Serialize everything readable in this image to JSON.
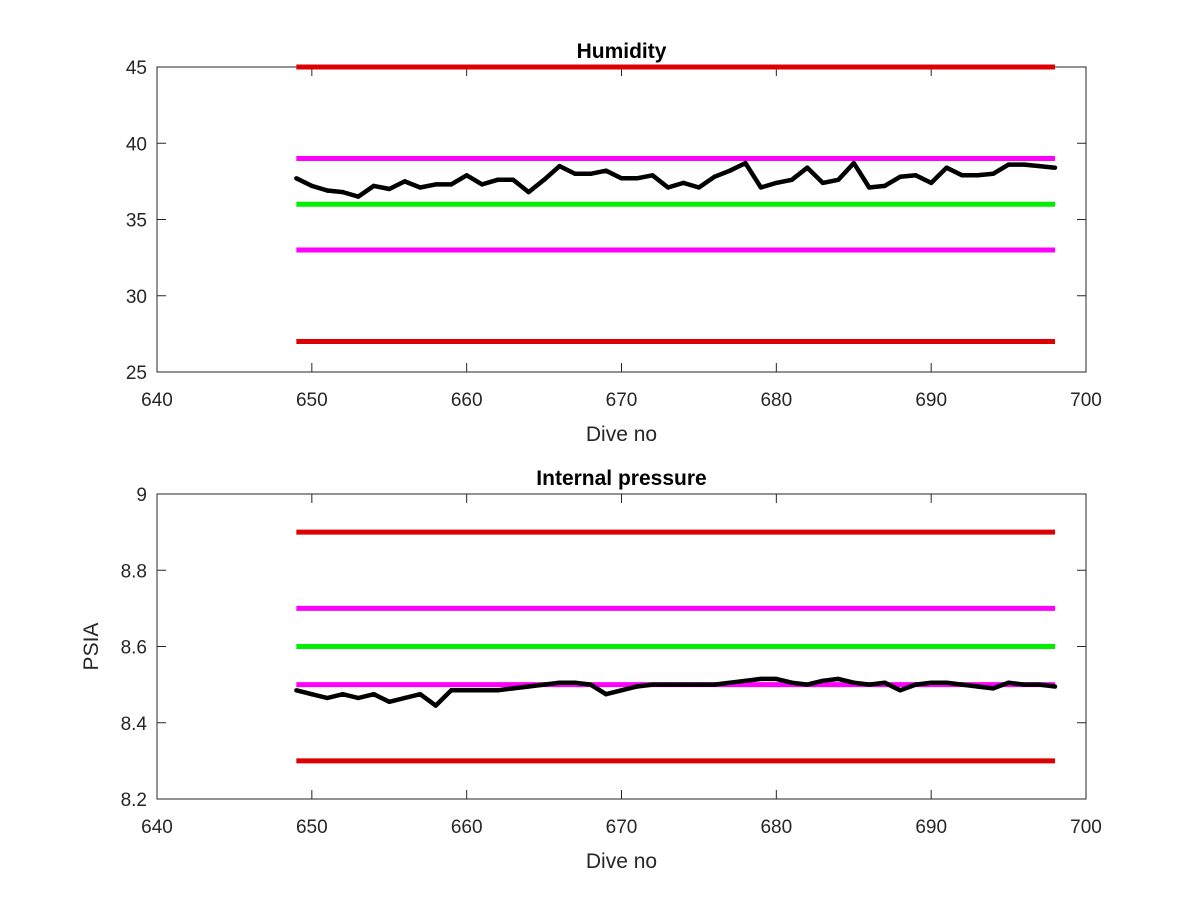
{
  "chart_data": [
    {
      "type": "line",
      "title": "Humidity",
      "xlabel": "Dive no",
      "ylabel": "",
      "xlim": [
        640,
        700
      ],
      "ylim": [
        25,
        45
      ],
      "xticks": [
        "640",
        "650",
        "660",
        "670",
        "680",
        "690",
        "700"
      ],
      "yticks": [
        "25",
        "30",
        "35",
        "40",
        "45"
      ],
      "grid": false,
      "reference_lines": [
        {
          "y": 45,
          "color": "#dd0000"
        },
        {
          "y": 39,
          "color": "#ff00ff"
        },
        {
          "y": 36,
          "color": "#00ee00"
        },
        {
          "y": 33,
          "color": "#ff00ff"
        },
        {
          "y": 27,
          "color": "#dd0000"
        }
      ],
      "ref_x_range": [
        649,
        698
      ],
      "series": [
        {
          "color": "#000000",
          "x": [
            649,
            650,
            651,
            652,
            653,
            654,
            655,
            656,
            657,
            658,
            659,
            660,
            661,
            662,
            663,
            664,
            665,
            666,
            667,
            668,
            669,
            670,
            671,
            672,
            673,
            674,
            675,
            676,
            677,
            678,
            679,
            680,
            681,
            682,
            683,
            684,
            685,
            686,
            687,
            688,
            689,
            690,
            691,
            692,
            693,
            694,
            695,
            696,
            697,
            698
          ],
          "y": [
            37.7,
            37.2,
            36.9,
            36.8,
            36.5,
            37.2,
            37.0,
            37.5,
            37.1,
            37.3,
            37.3,
            37.9,
            37.3,
            37.6,
            37.6,
            36.8,
            37.6,
            38.5,
            38.0,
            38.0,
            38.2,
            37.7,
            37.7,
            37.9,
            37.1,
            37.4,
            37.1,
            37.8,
            38.2,
            38.7,
            37.1,
            37.4,
            37.6,
            38.4,
            37.4,
            37.6,
            38.7,
            37.1,
            37.2,
            37.8,
            37.9,
            37.4,
            38.4,
            37.9,
            37.9,
            38.0,
            38.6,
            38.6,
            38.5,
            38.4
          ]
        }
      ]
    },
    {
      "type": "line",
      "title": "Internal pressure",
      "xlabel": "Dive no",
      "ylabel": "PSIA",
      "xlim": [
        640,
        700
      ],
      "ylim": [
        8.2,
        9
      ],
      "xticks": [
        "640",
        "650",
        "660",
        "670",
        "680",
        "690",
        "700"
      ],
      "yticks": [
        "8.2",
        "8.4",
        "8.6",
        "8.8",
        "9"
      ],
      "grid": false,
      "reference_lines": [
        {
          "y": 8.9,
          "color": "#dd0000"
        },
        {
          "y": 8.7,
          "color": "#ff00ff"
        },
        {
          "y": 8.6,
          "color": "#00ee00"
        },
        {
          "y": 8.5,
          "color": "#ff00ff"
        },
        {
          "y": 8.3,
          "color": "#dd0000"
        }
      ],
      "ref_x_range": [
        649,
        698
      ],
      "series": [
        {
          "color": "#000000",
          "x": [
            649,
            650,
            651,
            652,
            653,
            654,
            655,
            656,
            657,
            658,
            659,
            660,
            661,
            662,
            663,
            664,
            665,
            666,
            667,
            668,
            669,
            670,
            671,
            672,
            673,
            674,
            675,
            676,
            677,
            678,
            679,
            680,
            681,
            682,
            683,
            684,
            685,
            686,
            687,
            688,
            689,
            690,
            691,
            692,
            693,
            694,
            695,
            696,
            697,
            698
          ],
          "y": [
            8.485,
            8.475,
            8.465,
            8.475,
            8.465,
            8.475,
            8.455,
            8.465,
            8.475,
            8.445,
            8.485,
            8.485,
            8.485,
            8.485,
            8.49,
            8.495,
            8.5,
            8.505,
            8.505,
            8.5,
            8.475,
            8.485,
            8.495,
            8.5,
            8.5,
            8.5,
            8.5,
            8.5,
            8.505,
            8.51,
            8.515,
            8.515,
            8.505,
            8.5,
            8.51,
            8.515,
            8.505,
            8.5,
            8.505,
            8.485,
            8.5,
            8.505,
            8.505,
            8.5,
            8.495,
            8.49,
            8.505,
            8.5,
            8.5,
            8.495
          ]
        }
      ]
    }
  ]
}
